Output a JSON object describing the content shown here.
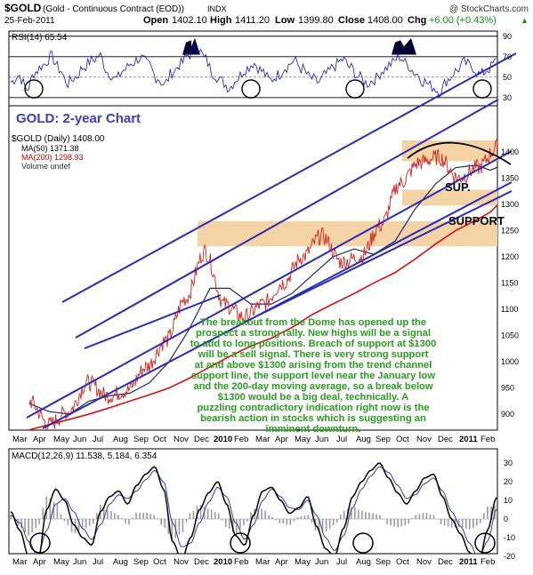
{
  "header": {
    "symbol": "$GOLD",
    "name": "(Gold - Continuous Contract (EOD))",
    "exchange": "INDX",
    "source": "@ StockCharts.com",
    "date": "25-Feb-2011",
    "open_label": "Open",
    "open": "1402.10",
    "high_label": "High",
    "high": "1411.20",
    "low_label": "Low",
    "low": "1399.80",
    "close_label": "Close",
    "close": "1408.00",
    "chg_label": "Chg",
    "chg": "+6.00 (+0.43%)",
    "chg_arrow": "▲"
  },
  "colors": {
    "price": "#d0231c",
    "ma50": "#1d2a6a",
    "ma200": "#e00000",
    "channel": "#2a2ab8",
    "band": "#f4d4a6",
    "annotation_text": "#2b9a22",
    "title_text": "#3c3cb4",
    "rsi_fill": "#000033"
  },
  "chart_data": [
    {
      "type": "line",
      "panel": "RSI",
      "legend": "RSI(14) 65.54",
      "ylim": [
        0,
        100
      ],
      "y_ticks": [
        "90",
        "70",
        "50",
        "30"
      ],
      "series": [
        {
          "name": "RSI(14)",
          "values": [
            45,
            52,
            38,
            55,
            62,
            70,
            58,
            44,
            50,
            60,
            66,
            71,
            55,
            48,
            57,
            64,
            69,
            62,
            50,
            43,
            55,
            63,
            72,
            80,
            68,
            54,
            46,
            40,
            49,
            58,
            64,
            56,
            47,
            52,
            60,
            66,
            58,
            49,
            45,
            53,
            61,
            67,
            59,
            50,
            44,
            48,
            57,
            63,
            70,
            62,
            54,
            46,
            41,
            36,
            48,
            56,
            64,
            60,
            52,
            58,
            65.54
          ]
        }
      ]
    },
    {
      "type": "line",
      "panel": "Price",
      "title": "GOLD: 2-year Chart",
      "legend": [
        "$GOLD (Daily) 1408.00",
        "MA(50) 1371.38",
        "MA(200) 1298.93",
        "Volume undef"
      ],
      "ylim": [
        850,
        1450
      ],
      "y_ticks": [
        1400,
        1350,
        1300,
        1250,
        1200,
        1150,
        1100,
        1050,
        1000,
        950,
        900
      ],
      "x_labels": [
        "Mar",
        "Apr",
        "May",
        "Jun",
        "Jul",
        "Aug",
        "Sep",
        "Oct",
        "Nov",
        "Dec",
        "2010",
        "Feb",
        "Mar",
        "Apr",
        "May",
        "Jun",
        "Jul",
        "Aug",
        "Sep",
        "Oct",
        "Nov",
        "Dec",
        "2011",
        "Feb"
      ],
      "x": [
        "Mar 2009",
        "Apr 2009",
        "May 2009",
        "Jun 2009",
        "Jul 2009",
        "Aug 2009",
        "Sep 2009",
        "Oct 2009",
        "Nov 2009",
        "Dec 2009",
        "Jan 2010",
        "Feb 2010",
        "Mar 2010",
        "Apr 2010",
        "May 2010",
        "Jun 2010",
        "Jul 2010",
        "Aug 2010",
        "Sep 2010",
        "Oct 2010",
        "Nov 2010",
        "Dec 2010",
        "Jan 2011",
        "Feb 2011",
        "Feb 25 2011"
      ],
      "series": [
        {
          "name": "$GOLD (Daily)",
          "values": [
            925,
            880,
            905,
            960,
            935,
            945,
            990,
            1040,
            1120,
            1210,
            1110,
            1085,
            1110,
            1150,
            1200,
            1240,
            1190,
            1200,
            1260,
            1340,
            1380,
            1390,
            1350,
            1370,
            1408
          ]
        },
        {
          "name": "MA(50)",
          "values": [
            920,
            905,
            900,
            925,
            935,
            940,
            960,
            1000,
            1060,
            1140,
            1140,
            1110,
            1110,
            1130,
            1165,
            1200,
            1215,
            1205,
            1230,
            1290,
            1340,
            1370,
            1375,
            1365,
            1371
          ]
        },
        {
          "name": "MA(200)",
          "values": [
            870,
            880,
            890,
            900,
            912,
            925,
            937,
            950,
            968,
            990,
            1010,
            1030,
            1045,
            1065,
            1090,
            1110,
            1130,
            1150,
            1170,
            1195,
            1225,
            1250,
            1270,
            1285,
            1299
          ]
        }
      ],
      "annotations": {
        "sup_label": "SUP.",
        "support_label": "SUPPORT",
        "commentary": [
          "The breakout from the Dome has opened up the",
          "prospect a strong rally. New highs will be a signal",
          "to add to long positions. Breach of support at $1300",
          "will be a sell signal. There is very strong support",
          "at and above $1300 arising from the trend channel",
          "support line, the support level near the January low",
          "and the 200-day moving average, so a break below",
          "$1300 would  be a big deal, technically. A",
          "puzzling contradictory indication right now is the",
          "bearish action in stocks which is suggesting an",
          "imminent downturn."
        ]
      }
    },
    {
      "type": "line",
      "panel": "MACD",
      "legend": "MACD(12,26,9) 11.538, 5.184, 6.354",
      "y_ticks": [
        30,
        20,
        10,
        0,
        -10,
        -20
      ],
      "ylim": [
        -30,
        35
      ],
      "series": [
        {
          "name": "MACD",
          "values": [
            4,
            -6,
            -20,
            -24,
            5,
            16,
            10,
            -3,
            -10,
            -14,
            4,
            12,
            15,
            8,
            18,
            24,
            28,
            16,
            -12,
            -22,
            -10,
            5,
            14,
            20,
            8,
            -9,
            -14,
            2,
            15,
            17,
            10,
            3,
            6,
            12,
            -4,
            -16,
            -20,
            -5,
            12,
            20,
            26,
            30,
            22,
            14,
            8,
            15,
            22,
            24,
            12,
            0,
            -8,
            -18,
            -24,
            -6,
            11.538
          ]
        },
        {
          "name": "Signal",
          "values": [
            2,
            -2,
            -12,
            -20,
            -6,
            8,
            11,
            4,
            -5,
            -11,
            -3,
            8,
            13,
            11,
            15,
            21,
            26,
            20,
            -2,
            -15,
            -13,
            -2,
            9,
            17,
            12,
            -2,
            -11,
            -3,
            10,
            16,
            12,
            6,
            5,
            10,
            2,
            -10,
            -17,
            -9,
            6,
            16,
            23,
            28,
            25,
            18,
            11,
            13,
            19,
            22,
            15,
            4,
            -4,
            -13,
            -21,
            -12,
            5.184
          ]
        }
      ]
    }
  ]
}
